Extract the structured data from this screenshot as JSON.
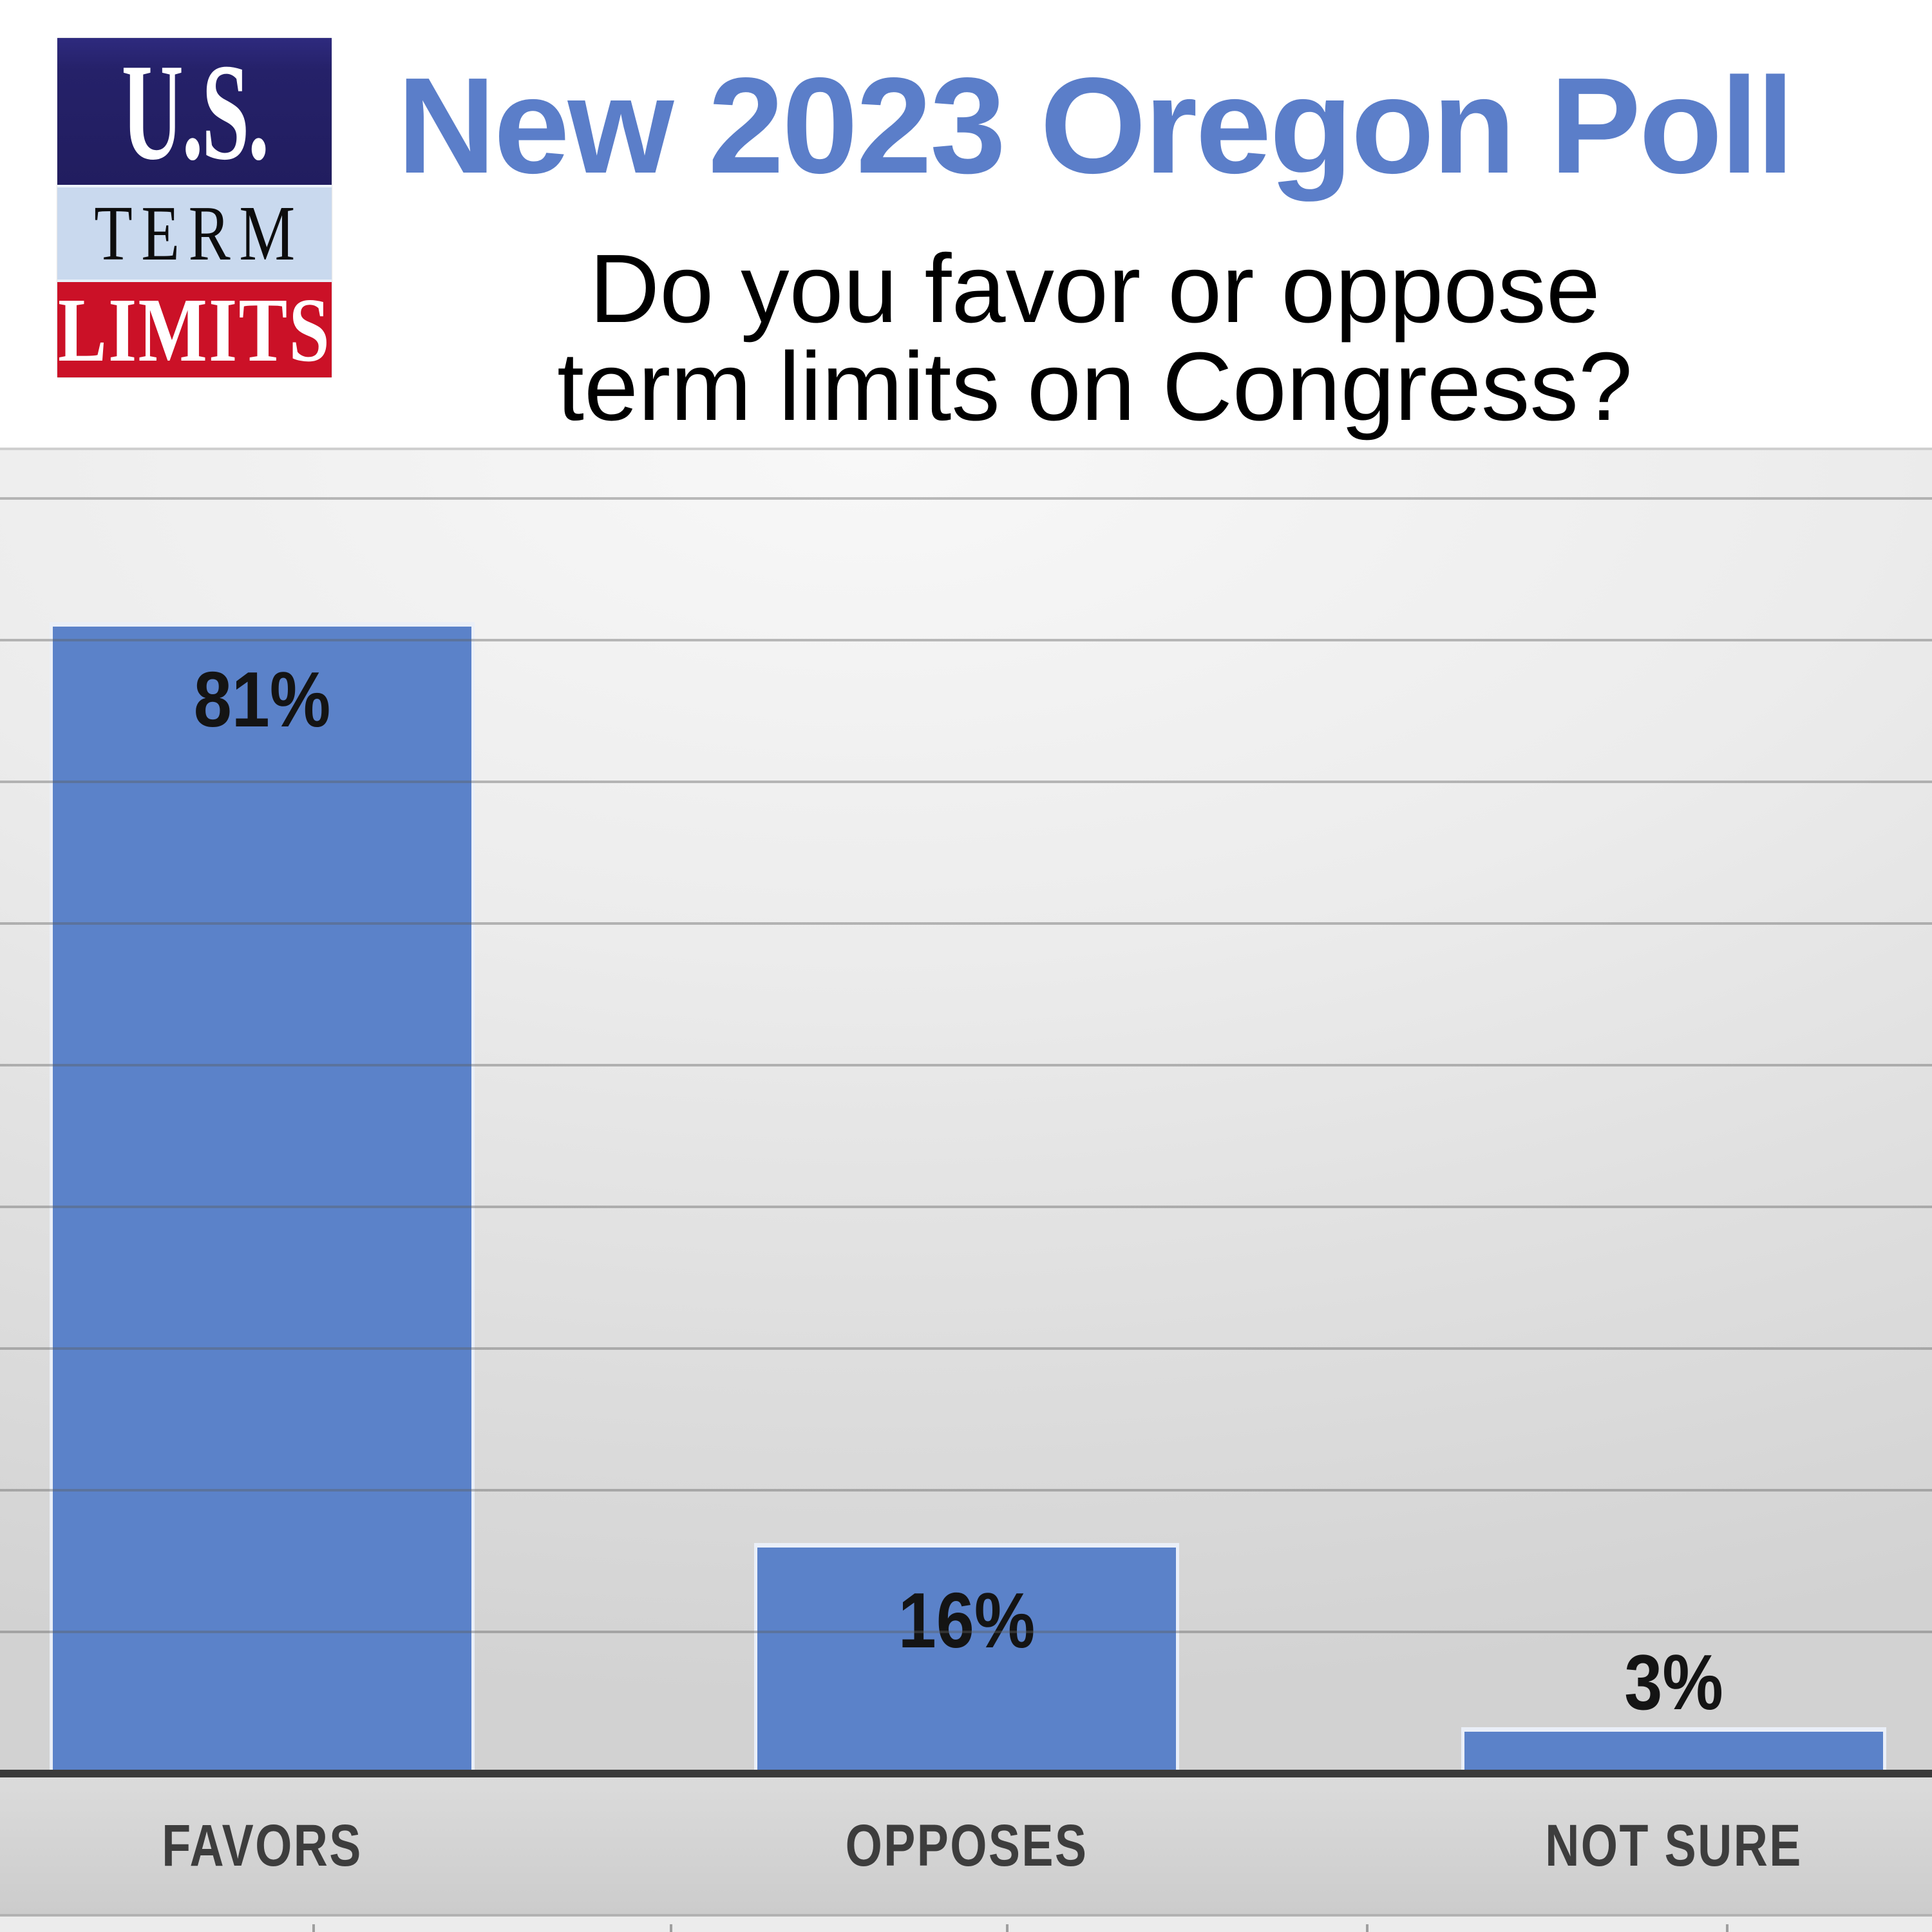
{
  "header": {
    "logo": {
      "line1": "U.S.",
      "line2": "TERM",
      "line3": "LIMITS",
      "navy_color": "#252169",
      "light_blue_color": "#c9d9ee",
      "red_color": "#cb1127"
    },
    "title": "New 2023 Oregon Poll",
    "title_color": "#5b7ec9",
    "subtitle_line1": "Do you favor or oppose",
    "subtitle_line2": "term limits on Congress?"
  },
  "chart_data": {
    "type": "bar",
    "title": "New 2023 Oregon Poll",
    "question": "Do you favor or oppose term limits on Congress?",
    "categories": [
      "FAVORS",
      "OPPOSES",
      "NOT SURE"
    ],
    "values": [
      81,
      16,
      3
    ],
    "value_labels": [
      "81%",
      "16%",
      "3%"
    ],
    "ylim": [
      0,
      93
    ],
    "gridline_step_percent": 10,
    "grid": true,
    "legend": false,
    "bar_color": "#5b82c9",
    "value_label_color": "#141414",
    "category_label_color": "#3d3d3d"
  }
}
